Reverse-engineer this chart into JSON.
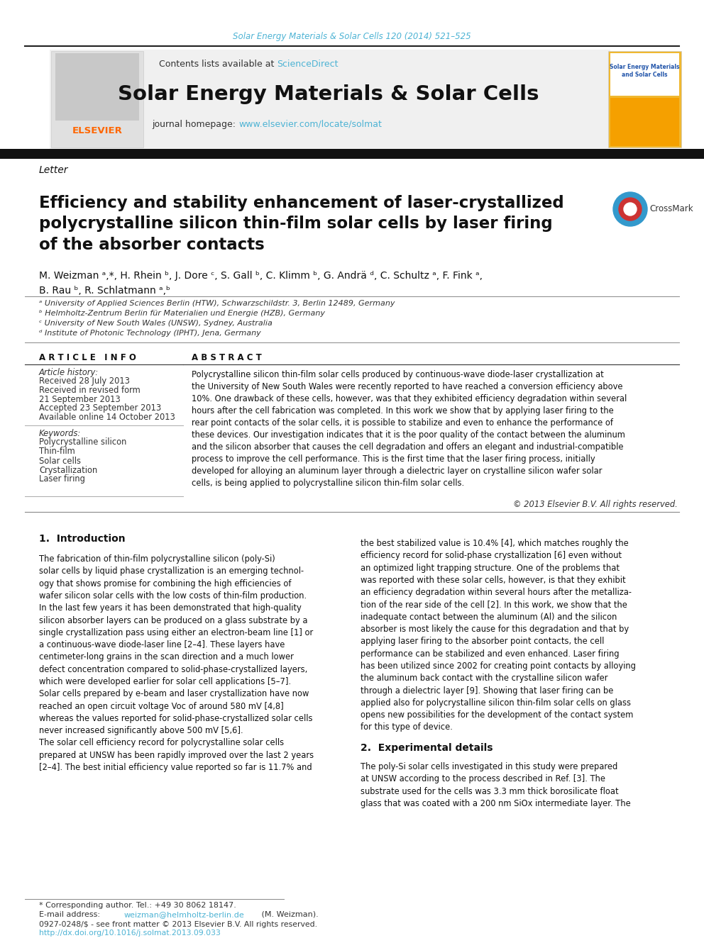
{
  "journal_line": "Solar Energy Materials & Solar Cells 120 (2014) 521–525",
  "journal_line_color": "#4db3d4",
  "header_bg_color": "#f0f0f0",
  "header_title": "Solar Energy Materials & Solar Cells",
  "contents_text": "Contents lists available at ",
  "science_direct": "ScienceDirect",
  "section_label": "Letter",
  "article_title": "Efficiency and stability enhancement of laser-crystallized\npolycrystalline silicon thin-film solar cells by laser firing\nof the absorber contacts",
  "authors": "M. Weizman ᵃ,*, H. Rhein ᵇ, J. Dore ᶜ, S. Gall ᵇ, C. Klimm ᵇ, G. Andrä ᵈ, C. Schultz ᵃ, F. Fink ᵃ,\nB. Rau ᵇ, R. Schlatmann ᵃ,ᵇ",
  "affil_a": "ᵃ University of Applied Sciences Berlin (HTW), Schwarzschildstr. 3, Berlin 12489, Germany",
  "affil_b": "ᵇ Helmholtz-Zentrum Berlin für Materialien und Energie (HZB), Germany",
  "affil_c": "ᶜ University of New South Wales (UNSW), Sydney, Australia",
  "affil_d": "ᵈ Institute of Photonic Technology (IPHT), Jena, Germany",
  "article_info_header": "A R T I C L E   I N F O",
  "abstract_header": "A B S T R A C T",
  "article_history_label": "Article history:",
  "received": "Received 28 July 2013",
  "received_revised": "Received in revised form",
  "revised_date": "21 September 2013",
  "accepted": "Accepted 23 September 2013",
  "available": "Available online 14 October 2013",
  "keywords_label": "Keywords:",
  "keywords": [
    "Polycrystalline silicon",
    "Thin-film",
    "Solar cells",
    "Crystallization",
    "Laser firing"
  ],
  "abstract_text": "Polycrystalline silicon thin-film solar cells produced by continuous-wave diode-laser crystallization at\nthe University of New South Wales were recently reported to have reached a conversion efficiency above\n10%. One drawback of these cells, however, was that they exhibited efficiency degradation within several\nhours after the cell fabrication was completed. In this work we show that by applying laser firing to the\nrear point contacts of the solar cells, it is possible to stabilize and even to enhance the performance of\nthese devices. Our investigation indicates that it is the poor quality of the contact between the aluminum\nand the silicon absorber that causes the cell degradation and offers an elegant and industrial-compatible\nprocess to improve the cell performance. This is the first time that the laser firing process, initially\ndeveloped for alloying an aluminum layer through a dielectric layer on crystalline silicon wafer solar\ncells, is being applied to polycrystalline silicon thin-film solar cells.",
  "copyright": "© 2013 Elsevier B.V. All rights reserved.",
  "intro_header": "1.  Introduction",
  "intro_text_left": "The fabrication of thin-film polycrystalline silicon (poly-Si)\nsolar cells by liquid phase crystallization is an emerging technol-\nogy that shows promise for combining the high efficiencies of\nwafer silicon solar cells with the low costs of thin-film production.\nIn the last few years it has been demonstrated that high-quality\nsilicon absorber layers can be produced on a glass substrate by a\nsingle crystallization pass using either an electron-beam line [1] or\na continuous-wave diode-laser line [2–4]. These layers have\ncentimeter-long grains in the scan direction and a much lower\ndefect concentration compared to solid-phase-crystallized layers,\nwhich were developed earlier for solar cell applications [5–7].\nSolar cells prepared by e-beam and laser crystallization have now\nreached an open circuit voltage Voc of around 580 mV [4,8]\nwhereas the values reported for solid-phase-crystallized solar cells\nnever increased significantly above 500 mV [5,6].",
  "intro_text_left2": "The solar cell efficiency record for polycrystalline solar cells\nprepared at UNSW has been rapidly improved over the last 2 years\n[2–4]. The best initial efficiency value reported so far is 11.7% and",
  "intro_text_right": "the best stabilized value is 10.4% [4], which matches roughly the\nefficiency record for solid-phase crystallization [6] even without\nan optimized light trapping structure. One of the problems that\nwas reported with these solar cells, however, is that they exhibit\nan efficiency degradation within several hours after the metalliza-\ntion of the rear side of the cell [2]. In this work, we show that the\ninadequate contact between the aluminum (Al) and the silicon\nabsorber is most likely the cause for this degradation and that by\napplying laser firing to the absorber point contacts, the cell\nperformance can be stabilized and even enhanced. Laser firing\nhas been utilized since 2002 for creating point contacts by alloying\nthe aluminum back contact with the crystalline silicon wafer\nthrough a dielectric layer [9]. Showing that laser firing can be\napplied also for polycrystalline silicon thin-film solar cells on glass\nopens new possibilities for the development of the contact system\nfor this type of device.",
  "section2_header": "2.  Experimental details",
  "section2_text": "The poly-Si solar cells investigated in this study were prepared\nat UNSW according to the process described in Ref. [3]. The\nsubstrate used for the cells was 3.3 mm thick borosilicate float\nglass that was coated with a 200 nm SiOx intermediate layer. The",
  "footer_text1": "* Corresponding author. Tel.: +49 30 8062 18147.",
  "footer_issn": "0927-0248/$ - see front matter © 2013 Elsevier B.V. All rights reserved.",
  "footer_doi": "http://dx.doi.org/10.1016/j.solmat.2013.09.033",
  "link_color": "#4db3d4",
  "elsevier_color": "#ff6600",
  "bg_white": "#ffffff"
}
